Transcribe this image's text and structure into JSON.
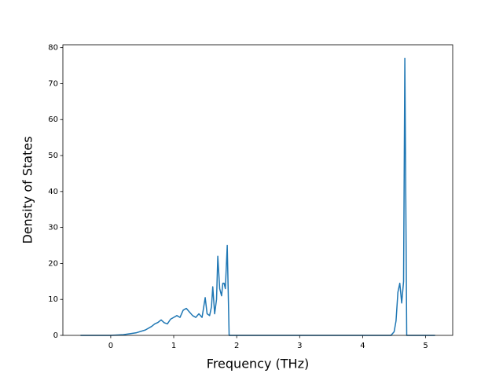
{
  "chart_data": {
    "type": "line",
    "x_label": "Frequency (THz)",
    "y_label": "Density of States",
    "series": [
      {
        "color": "#1f77b4",
        "x": [
          -0.48,
          0,
          0.2,
          0.4,
          0.55,
          0.65,
          0.7,
          0.75,
          0.8,
          0.85,
          0.9,
          0.95,
          1.0,
          1.05,
          1.1,
          1.15,
          1.2,
          1.25,
          1.3,
          1.35,
          1.4,
          1.45,
          1.5,
          1.53,
          1.57,
          1.6,
          1.62,
          1.65,
          1.68,
          1.7,
          1.73,
          1.76,
          1.78,
          1.8,
          1.82,
          1.85,
          1.88,
          4.45,
          4.5,
          4.53,
          4.56,
          4.59,
          4.62,
          4.65,
          4.67,
          4.7,
          5.15
        ],
        "values": [
          0,
          0,
          0.2,
          0.7,
          1.5,
          2.5,
          3.2,
          3.6,
          4.3,
          3.5,
          3.2,
          4.5,
          5,
          5.5,
          5,
          7,
          7.5,
          6.5,
          5.5,
          5,
          6,
          5,
          10.5,
          6,
          5.5,
          8,
          13.5,
          6,
          10,
          22,
          13,
          11,
          14.5,
          14.5,
          13,
          25,
          0,
          0,
          1,
          4,
          12,
          14.5,
          9,
          15,
          77,
          0,
          0
        ]
      }
    ],
    "xlim": [
      -0.76,
      5.43
    ],
    "xticks": [
      0,
      1,
      2,
      3,
      4,
      5
    ],
    "ylim": [
      0,
      80.8
    ],
    "yticks": [
      0,
      10,
      20,
      30,
      40,
      50,
      60,
      70,
      80
    ],
    "grid": false
  }
}
